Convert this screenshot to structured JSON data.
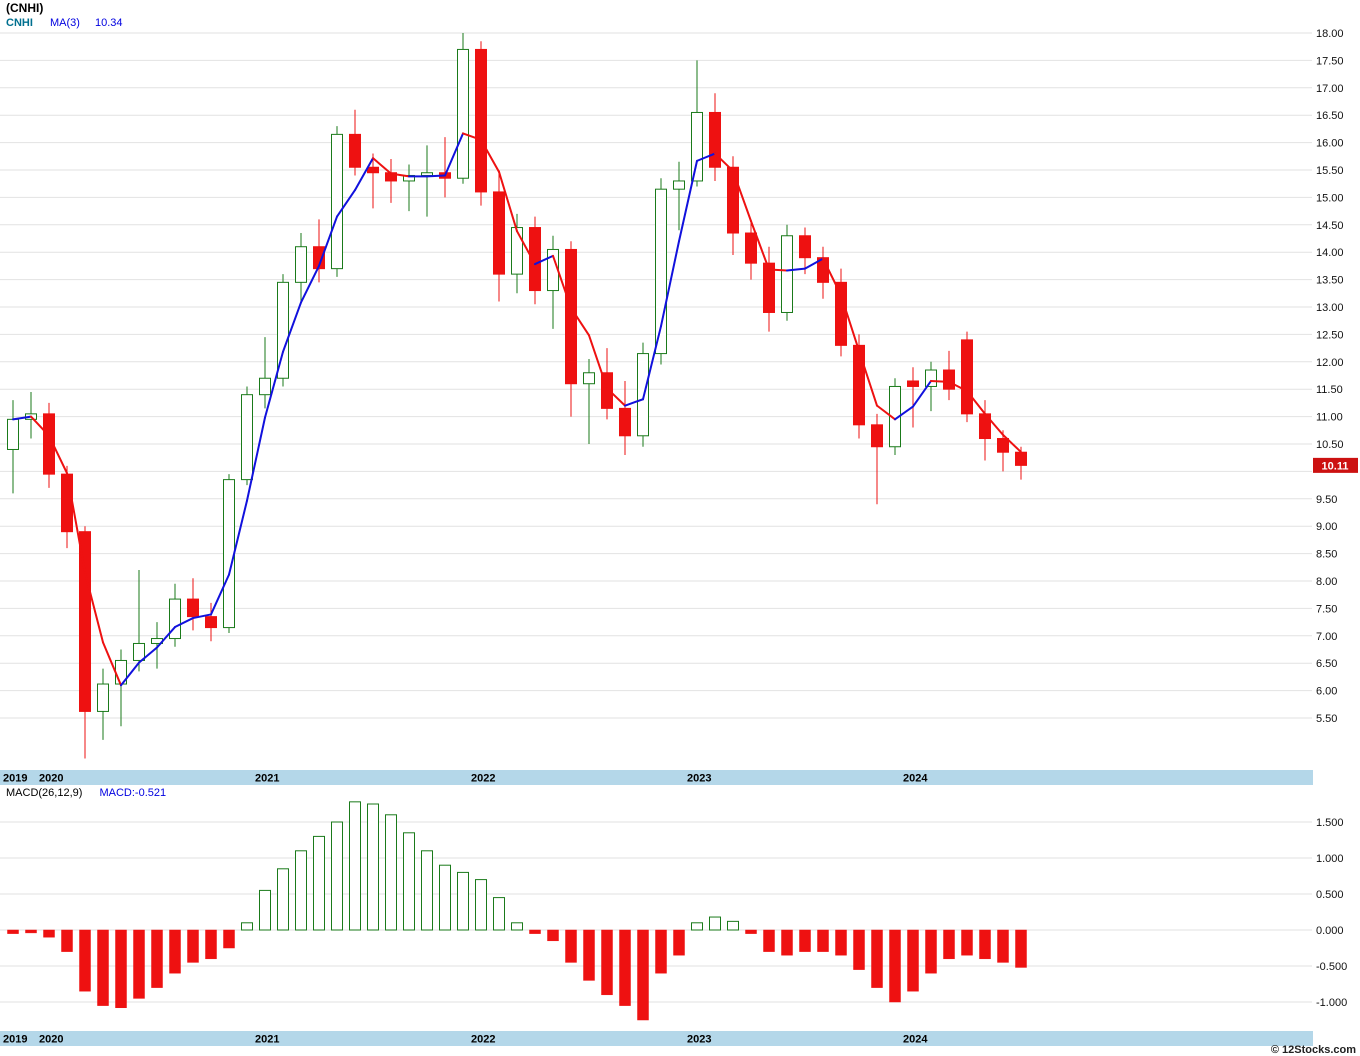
{
  "title": "(CNHI)",
  "price_panel": {
    "legend": {
      "ticker": "CNHI",
      "ma_label": "MA(3)",
      "ma_value": "10.34"
    },
    "last_price_badge": "10.11"
  },
  "macd_panel": {
    "legend": {
      "label": "MACD(26,12,9)",
      "value": "MACD:-0.521"
    }
  },
  "x_axis": {
    "years": [
      "2019",
      "2020",
      "2021",
      "2022",
      "2023",
      "2024"
    ]
  },
  "watermark": "© 12Stocks.com",
  "colors": {
    "up": "#1a7a1a",
    "down": "#ee1111",
    "ma_up": "#1111dd",
    "ma_down": "#ee1111",
    "grid": "#e2e2e2",
    "band": "#b4d7e9",
    "badge_bg": "#cc1111"
  },
  "chart_data": {
    "type": "candlestick+macd",
    "symbol": "CNHI",
    "interval": "monthly",
    "price_axis": {
      "min": 5.5,
      "max": 18.0,
      "step": 0.5
    },
    "macd_axis_ticks": [
      1.5,
      1.0,
      0.5,
      0.0,
      -0.5,
      -1.0
    ],
    "ma_period": 3,
    "ma_last": 10.34,
    "macd_last": -0.521,
    "last_close": 10.11,
    "columns": [
      "date",
      "open",
      "high",
      "low",
      "close"
    ],
    "candles": [
      [
        "2019-11",
        10.4,
        11.3,
        9.6,
        10.95
      ],
      [
        "2019-12",
        10.95,
        11.45,
        10.6,
        11.05
      ],
      [
        "2020-01",
        11.05,
        11.25,
        9.7,
        9.95
      ],
      [
        "2020-02",
        9.95,
        10.1,
        8.6,
        8.9
      ],
      [
        "2020-03",
        8.9,
        9.0,
        4.76,
        5.62
      ],
      [
        "2020-04",
        5.62,
        6.4,
        5.1,
        6.12
      ],
      [
        "2020-05",
        6.12,
        6.75,
        5.35,
        6.55
      ],
      [
        "2020-06",
        6.55,
        8.2,
        6.35,
        6.86
      ],
      [
        "2020-07",
        6.86,
        7.25,
        6.4,
        6.95
      ],
      [
        "2020-08",
        6.95,
        7.95,
        6.8,
        7.67
      ],
      [
        "2020-09",
        7.67,
        8.05,
        7.1,
        7.35
      ],
      [
        "2020-10",
        7.35,
        7.6,
        6.9,
        7.15
      ],
      [
        "2020-11",
        7.15,
        9.95,
        7.05,
        9.85
      ],
      [
        "2020-12",
        9.85,
        11.55,
        9.75,
        11.4
      ],
      [
        "2021-01",
        11.4,
        12.45,
        11.15,
        11.7
      ],
      [
        "2021-02",
        11.7,
        13.6,
        11.55,
        13.45
      ],
      [
        "2021-03",
        13.45,
        14.35,
        13.05,
        14.1
      ],
      [
        "2021-04",
        14.1,
        14.6,
        13.45,
        13.7
      ],
      [
        "2021-05",
        13.7,
        16.3,
        13.55,
        16.15
      ],
      [
        "2021-06",
        16.15,
        16.6,
        15.4,
        15.55
      ],
      [
        "2021-07",
        15.55,
        15.8,
        14.8,
        15.45
      ],
      [
        "2021-08",
        15.45,
        15.7,
        14.9,
        15.3
      ],
      [
        "2021-09",
        15.3,
        15.6,
        14.75,
        15.4
      ],
      [
        "2021-10",
        15.4,
        15.95,
        14.65,
        15.45
      ],
      [
        "2021-11",
        15.45,
        16.1,
        15.0,
        15.35
      ],
      [
        "2021-12",
        15.35,
        18.0,
        15.25,
        17.7
      ],
      [
        "2022-01",
        17.7,
        17.85,
        14.85,
        15.1
      ],
      [
        "2022-02",
        15.1,
        15.5,
        13.1,
        13.6
      ],
      [
        "2022-03",
        13.6,
        14.7,
        13.25,
        14.45
      ],
      [
        "2022-04",
        14.45,
        14.65,
        13.05,
        13.3
      ],
      [
        "2022-05",
        13.3,
        14.3,
        12.6,
        14.05
      ],
      [
        "2022-06",
        14.05,
        14.2,
        11.0,
        11.6
      ],
      [
        "2022-07",
        11.6,
        12.05,
        10.5,
        11.8
      ],
      [
        "2022-08",
        11.8,
        12.25,
        10.95,
        11.15
      ],
      [
        "2022-09",
        11.15,
        11.65,
        10.3,
        10.65
      ],
      [
        "2022-10",
        10.65,
        12.35,
        10.45,
        12.15
      ],
      [
        "2022-11",
        12.15,
        15.35,
        11.95,
        15.15
      ],
      [
        "2022-12",
        15.15,
        15.65,
        14.4,
        15.3
      ],
      [
        "2023-01",
        15.3,
        17.5,
        15.2,
        16.55
      ],
      [
        "2023-02",
        16.55,
        16.9,
        15.3,
        15.55
      ],
      [
        "2023-03",
        15.55,
        15.75,
        13.95,
        14.35
      ],
      [
        "2023-04",
        14.35,
        14.55,
        13.5,
        13.8
      ],
      [
        "2023-05",
        13.8,
        14.1,
        12.55,
        12.9
      ],
      [
        "2023-06",
        12.9,
        14.5,
        12.75,
        14.3
      ],
      [
        "2023-07",
        14.3,
        14.45,
        13.6,
        13.9
      ],
      [
        "2023-08",
        13.9,
        14.1,
        13.15,
        13.45
      ],
      [
        "2023-09",
        13.45,
        13.7,
        12.1,
        12.3
      ],
      [
        "2023-10",
        12.3,
        12.5,
        10.6,
        10.85
      ],
      [
        "2023-11",
        10.85,
        11.05,
        9.4,
        10.45
      ],
      [
        "2023-12",
        10.45,
        11.7,
        10.3,
        11.55
      ],
      [
        "2024-01",
        11.65,
        11.9,
        10.8,
        11.55
      ],
      [
        "2024-02",
        11.55,
        12.0,
        11.1,
        11.85
      ],
      [
        "2024-03",
        11.85,
        12.2,
        11.3,
        11.5
      ],
      [
        "2024-04",
        12.4,
        12.55,
        10.9,
        11.05
      ],
      [
        "2024-05",
        11.05,
        11.3,
        10.2,
        10.6
      ],
      [
        "2024-06",
        10.6,
        10.75,
        10.0,
        10.35
      ],
      [
        "2024-07",
        10.35,
        10.45,
        9.85,
        10.11
      ]
    ],
    "macd_histogram": [
      -0.05,
      -0.04,
      -0.1,
      -0.3,
      -0.85,
      -1.05,
      -1.08,
      -0.95,
      -0.8,
      -0.6,
      -0.45,
      -0.4,
      -0.25,
      0.1,
      0.55,
      0.85,
      1.1,
      1.3,
      1.5,
      1.78,
      1.75,
      1.6,
      1.35,
      1.1,
      0.9,
      0.8,
      0.7,
      0.45,
      0.1,
      -0.05,
      -0.15,
      -0.45,
      -0.7,
      -0.9,
      -1.05,
      -1.25,
      -0.6,
      -0.35,
      0.1,
      0.18,
      0.12,
      -0.05,
      -0.3,
      -0.35,
      -0.3,
      -0.3,
      -0.35,
      -0.55,
      -0.8,
      -1.0,
      -0.85,
      -0.6,
      -0.4,
      -0.35,
      -0.4,
      -0.45,
      -0.52
    ]
  }
}
